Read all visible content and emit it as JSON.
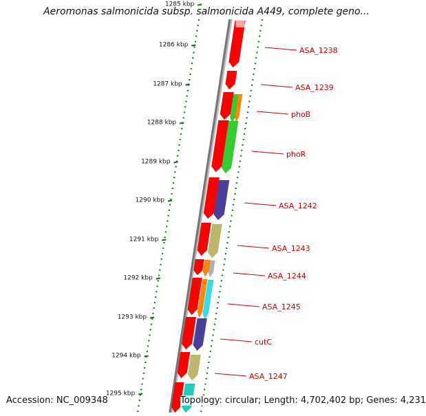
{
  "header": {
    "title": "Aeromonas salmonicida subsp. salmonicida A449, complete geno..."
  },
  "footer": {
    "accession": "Accession: NC_009348",
    "summary": "Topology: circular; Length: 4,702,402 bp; Genes: 4,231"
  },
  "ruler": {
    "labels": [
      "1285 kbp",
      "1286 kbp",
      "1287 kbp",
      "1288 kbp",
      "1289 kbp",
      "1290 kbp",
      "1291 kbp",
      "1292 kbp",
      "1293 kbp",
      "1294 kbp",
      "1295 kbp"
    ]
  },
  "gene_labels": [
    "ASA_1238",
    "ASA_1239",
    "phoB",
    "phoR",
    "ASA_1242",
    "ASA_1243",
    "ASA_1244",
    "ASA_1245",
    "cutC",
    "ASA_1247"
  ],
  "colors": {
    "background": "#ffffff",
    "backbone": "#777777",
    "tick": "#1a7a1a",
    "gene_label": "#cc0000",
    "feature_red": "#ff0000",
    "feature_green": "#33cc33",
    "feature_orange": "#ff8800",
    "feature_purple": "#4a3f9a",
    "feature_khaki": "#bdb76b",
    "feature_teal": "#22ccbb",
    "feature_cyan": "#33ddee",
    "feature_grey": "#b0b0b0"
  }
}
